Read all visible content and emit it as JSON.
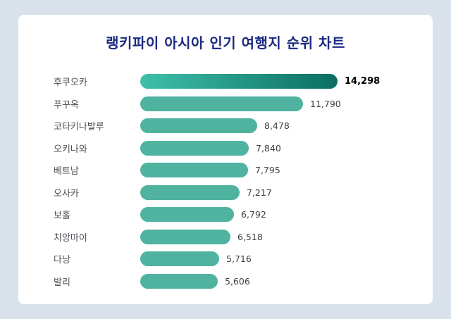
{
  "chart_data": {
    "type": "bar",
    "orientation": "horizontal",
    "title": "랭키파이 아시아 인기 여행지 순위 차트",
    "categories": [
      "후쿠오카",
      "푸꾸옥",
      "코타키나발루",
      "오키나와",
      "베트남",
      "오사카",
      "보홀",
      "치앙마이",
      "다낭",
      "발리"
    ],
    "values": [
      14298,
      11790,
      8478,
      7840,
      7795,
      7217,
      6792,
      6518,
      5716,
      5606
    ],
    "value_labels": [
      "14,298",
      "11,790",
      "8,478",
      "7,840",
      "7,795",
      "7,217",
      "6,792",
      "6,518",
      "5,716",
      "5,606"
    ],
    "xlim": [
      0,
      14298
    ],
    "legend": "none",
    "grid": false,
    "highlight_index": 0,
    "colors": {
      "bar": "#4fb3a0",
      "highlight_bar_gradient_start": "#3fc0ab",
      "highlight_bar_gradient_end": "#0a6e62",
      "title_text": "#1b2a80",
      "label_text": "#4a4f54",
      "value_text": "#3a3f44",
      "background": "#d9e2ea",
      "card_background": "#ffffff"
    }
  }
}
